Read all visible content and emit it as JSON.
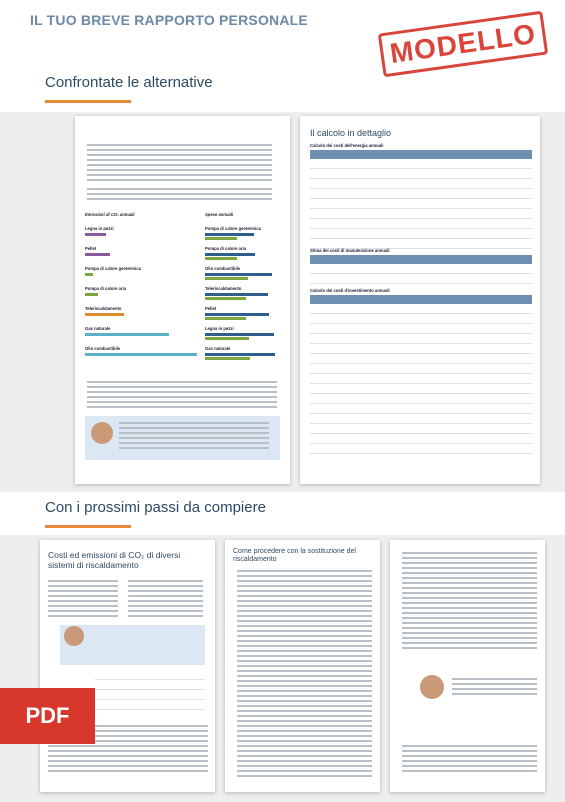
{
  "header": {
    "title": "IL TUO BREVE RAPPORTO PERSONALE",
    "stamp": "MODELLO"
  },
  "sections": [
    {
      "title": "Confrontate le alternative"
    },
    {
      "title": "Con i prossimi passi da compiere"
    }
  ],
  "page_left": {
    "emissions_title": "Emissioni di CO₂ annuali",
    "costs_title": "Spese annuali",
    "emissions_items": [
      "Legna in pezzi",
      "Pellet",
      "Pompa di calore geotermica",
      "Pompa di calore aria",
      "Teleriscaldamento",
      "Gas naturale",
      "Olio combustibile"
    ],
    "costs_items": [
      "Pompa di calore geotermica",
      "Pompa di calore aria",
      "Olio combustibile",
      "Teleriscaldamento",
      "Pellet",
      "Legna in pezzi",
      "Gas naturale"
    ]
  },
  "page_right": {
    "title": "Il calcolo in dettaglio",
    "tables": [
      "Calcolo dei costi dell'energia annuali",
      "Stima dei costi di manutenzione annuali",
      "Calcolo dei costi d'investimento annuali"
    ]
  },
  "next_pages": [
    "Costi ed emissioni di CO₂ di diversi sistemi di riscaldamento",
    "Come procedere con la sostituzione del riscaldamento"
  ],
  "badge": "PDF"
}
